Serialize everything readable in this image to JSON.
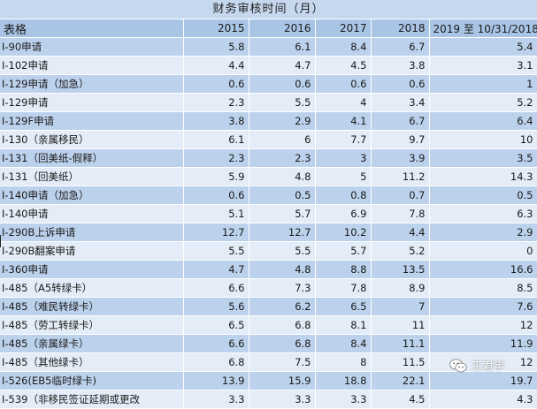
{
  "title": "财务审核时间（月）",
  "headers": [
    "表格",
    "2015",
    "2016",
    "2017",
    "2018",
    "2019 至 10/31/2018"
  ],
  "rows": [
    {
      "form": "I-90申请",
      "v": [
        "5.8",
        "6.1",
        "8.4",
        "6.7",
        "5.4"
      ]
    },
    {
      "form": "I-102申请",
      "v": [
        "4.4",
        "4.7",
        "4.5",
        "3.8",
        "3.1"
      ]
    },
    {
      "form": "I-129申请（加急）",
      "v": [
        "0.6",
        "0.6",
        "0.6",
        "0.6",
        "1"
      ]
    },
    {
      "form": "I-129申请",
      "v": [
        "2.3",
        "5.5",
        "4",
        "3.4",
        "5.2"
      ]
    },
    {
      "form": "I-129F申请",
      "v": [
        "3.8",
        "2.9",
        "4.1",
        "6.7",
        "6.4"
      ]
    },
    {
      "form": "I-130（亲属移民）",
      "v": [
        "6.1",
        "6",
        "7.7",
        "9.7",
        "10"
      ]
    },
    {
      "form": "I-131（回美纸-假释）",
      "v": [
        "2.3",
        "2.3",
        "3",
        "3.9",
        "3.5"
      ]
    },
    {
      "form": "I-131（回美纸）",
      "v": [
        "5.9",
        "4.8",
        "5",
        "11.2",
        "14.3"
      ]
    },
    {
      "form": "I-140申请（加急）",
      "v": [
        "0.6",
        "0.5",
        "0.8",
        "0.7",
        "0.5"
      ]
    },
    {
      "form": "I-140申请",
      "v": [
        "5.1",
        "5.7",
        "6.9",
        "7.8",
        "6.3"
      ]
    },
    {
      "form": "I-290B上诉申请",
      "v": [
        "12.7",
        "12.7",
        "10.2",
        "4.4",
        "2.9"
      ]
    },
    {
      "form": "I-290B翻案申请",
      "v": [
        "5.5",
        "5.5",
        "5.7",
        "5.2",
        "0"
      ]
    },
    {
      "form": "I-360申请",
      "v": [
        "4.7",
        "4.8",
        "8.8",
        "13.5",
        "16.6"
      ]
    },
    {
      "form": "I-485（A5转绿卡）",
      "v": [
        "6.6",
        "7.3",
        "7.8",
        "8.9",
        "8.5"
      ]
    },
    {
      "form": "I-485（难民转绿卡）",
      "v": [
        "5.6",
        "6.2",
        "6.5",
        "7",
        "7.6"
      ]
    },
    {
      "form": "I-485（劳工转绿卡）",
      "v": [
        "6.5",
        "6.8",
        "8.1",
        "11",
        "12"
      ]
    },
    {
      "form": "I-485（亲属绿卡）",
      "v": [
        "6.6",
        "6.8",
        "8.4",
        "11.1",
        "11.9"
      ]
    },
    {
      "form": "I-485（其他绿卡）",
      "v": [
        "6.8",
        "7.5",
        "8",
        "11.5",
        "12"
      ]
    },
    {
      "form": "I-526(EB5临时绿卡)",
      "v": [
        "13.9",
        "15.9",
        "18.8",
        "22.1",
        "19.7"
      ]
    },
    {
      "form": "I-539（非移民签证延期或更改",
      "v": [
        "3.3",
        "3.3",
        "3.3",
        "4.5",
        "4.3"
      ]
    }
  ],
  "watermark": "王君宇",
  "icons": {
    "watermark": "wechat-icon"
  }
}
